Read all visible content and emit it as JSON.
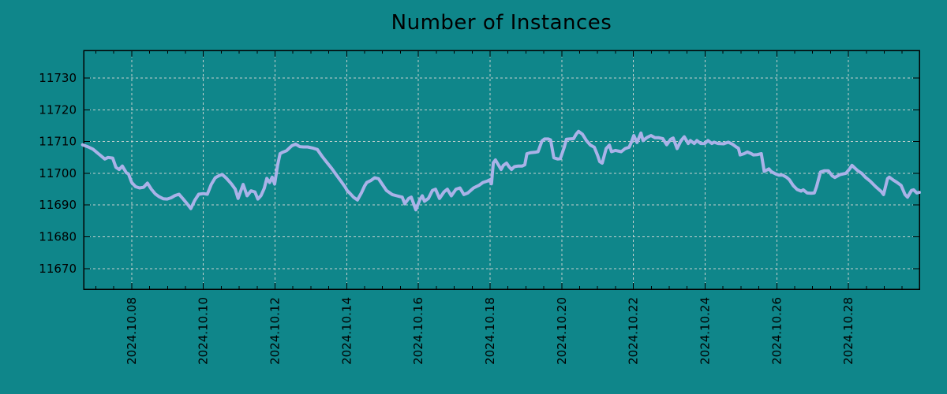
{
  "chart_data": {
    "type": "line",
    "title": "Number of Instances",
    "xlabel": "",
    "ylabel": "",
    "legend": "none",
    "grid": "dashed",
    "colors": {
      "background": "#0f868a",
      "line": "#aab2e8",
      "grid": "#c4d0ce",
      "axis": "#000000",
      "text": "#000000"
    },
    "x_axis": {
      "tick_labels": [
        "2024.10.08",
        "2024.10.10",
        "2024.10.12",
        "2024.10.14",
        "2024.10.16",
        "2024.10.18",
        "2024.10.20",
        "2024.10.22",
        "2024.10.24",
        "2024.10.26",
        "2024.10.28"
      ],
      "tick_days": [
        8,
        10,
        12,
        14,
        16,
        18,
        20,
        22,
        24,
        26,
        28
      ],
      "minor_tick_interval_days": 0.5,
      "labels_rotated_degrees": 90
    },
    "y_axis": {
      "ticks": [
        11670,
        11680,
        11690,
        11700,
        11710,
        11720,
        11730
      ]
    },
    "xlim_days": [
      6.66,
      29.98
    ],
    "ylim": [
      11663.5,
      11738.7
    ],
    "series": [
      {
        "name": "instances",
        "points": [
          [
            6.63,
            11709.0
          ],
          [
            6.79,
            11708.3
          ],
          [
            6.92,
            11707.6
          ],
          [
            7.07,
            11706.2
          ],
          [
            7.25,
            11704.5
          ],
          [
            7.34,
            11705.0
          ],
          [
            7.47,
            11704.8
          ],
          [
            7.56,
            11701.9
          ],
          [
            7.65,
            11701.2
          ],
          [
            7.74,
            11702.3
          ],
          [
            7.85,
            11700.2
          ],
          [
            7.91,
            11699.8
          ],
          [
            8.0,
            11697.1
          ],
          [
            8.11,
            11695.8
          ],
          [
            8.22,
            11695.4
          ],
          [
            8.33,
            11695.6
          ],
          [
            8.44,
            11696.9
          ],
          [
            8.55,
            11695.0
          ],
          [
            8.66,
            11693.5
          ],
          [
            8.77,
            11692.6
          ],
          [
            8.88,
            11692.0
          ],
          [
            8.99,
            11691.9
          ],
          [
            9.1,
            11692.3
          ],
          [
            9.21,
            11693.0
          ],
          [
            9.32,
            11693.4
          ],
          [
            9.43,
            11692.0
          ],
          [
            9.54,
            11690.5
          ],
          [
            9.65,
            11688.9
          ],
          [
            9.76,
            11691.5
          ],
          [
            9.87,
            11693.4
          ],
          [
            10.0,
            11693.6
          ],
          [
            10.11,
            11693.4
          ],
          [
            10.22,
            11696.5
          ],
          [
            10.33,
            11698.6
          ],
          [
            10.44,
            11699.3
          ],
          [
            10.53,
            11699.6
          ],
          [
            10.64,
            11698.5
          ],
          [
            10.78,
            11696.7
          ],
          [
            10.89,
            11695.0
          ],
          [
            10.97,
            11692.1
          ],
          [
            11.11,
            11696.5
          ],
          [
            11.22,
            11692.9
          ],
          [
            11.33,
            11694.5
          ],
          [
            11.44,
            11694.1
          ],
          [
            11.52,
            11691.9
          ],
          [
            11.61,
            11693.0
          ],
          [
            11.7,
            11695.3
          ],
          [
            11.77,
            11698.4
          ],
          [
            11.85,
            11697.1
          ],
          [
            11.92,
            11698.8
          ],
          [
            11.99,
            11696.6
          ],
          [
            12.07,
            11702.5
          ],
          [
            12.14,
            11706.2
          ],
          [
            12.21,
            11706.6
          ],
          [
            12.32,
            11707.1
          ],
          [
            12.47,
            11708.7
          ],
          [
            12.58,
            11709.2
          ],
          [
            12.69,
            11708.4
          ],
          [
            12.8,
            11708.3
          ],
          [
            12.91,
            11708.3
          ],
          [
            13.07,
            11707.9
          ],
          [
            13.18,
            11707.5
          ],
          [
            13.31,
            11705.4
          ],
          [
            13.42,
            11703.8
          ],
          [
            13.57,
            11701.7
          ],
          [
            13.73,
            11699.2
          ],
          [
            13.84,
            11697.5
          ],
          [
            13.95,
            11695.8
          ],
          [
            14.01,
            11694.6
          ],
          [
            14.08,
            11693.8
          ],
          [
            14.19,
            11692.5
          ],
          [
            14.3,
            11691.6
          ],
          [
            14.41,
            11693.8
          ],
          [
            14.5,
            11696.0
          ],
          [
            14.56,
            11697.1
          ],
          [
            14.67,
            11697.7
          ],
          [
            14.78,
            11698.6
          ],
          [
            14.89,
            11698.3
          ],
          [
            14.96,
            11697.1
          ],
          [
            15.11,
            11694.6
          ],
          [
            15.27,
            11693.3
          ],
          [
            15.4,
            11692.9
          ],
          [
            15.55,
            11692.5
          ],
          [
            15.62,
            11690.4
          ],
          [
            15.73,
            11692.1
          ],
          [
            15.8,
            11692.5
          ],
          [
            15.93,
            11688.5
          ],
          [
            16.04,
            11691.7
          ],
          [
            16.11,
            11692.9
          ],
          [
            16.17,
            11691.2
          ],
          [
            16.28,
            11692.1
          ],
          [
            16.39,
            11694.6
          ],
          [
            16.48,
            11695.0
          ],
          [
            16.59,
            11692.1
          ],
          [
            16.72,
            11694.2
          ],
          [
            16.81,
            11695.0
          ],
          [
            16.92,
            11692.9
          ],
          [
            17.05,
            11695.0
          ],
          [
            17.16,
            11695.4
          ],
          [
            17.27,
            11693.3
          ],
          [
            17.38,
            11693.8
          ],
          [
            17.54,
            11695.4
          ],
          [
            17.69,
            11696.2
          ],
          [
            17.8,
            11697.1
          ],
          [
            17.91,
            11697.5
          ],
          [
            17.98,
            11697.9
          ],
          [
            18.04,
            11696.7
          ],
          [
            18.09,
            11703.3
          ],
          [
            18.15,
            11704.2
          ],
          [
            18.24,
            11702.5
          ],
          [
            18.31,
            11701.2
          ],
          [
            18.37,
            11702.5
          ],
          [
            18.46,
            11703.2
          ],
          [
            18.53,
            11702.1
          ],
          [
            18.6,
            11701.2
          ],
          [
            18.68,
            11702.1
          ],
          [
            18.79,
            11702.3
          ],
          [
            18.9,
            11702.3
          ],
          [
            18.97,
            11702.7
          ],
          [
            19.03,
            11706.2
          ],
          [
            19.14,
            11706.5
          ],
          [
            19.25,
            11706.6
          ],
          [
            19.34,
            11706.8
          ],
          [
            19.45,
            11710.2
          ],
          [
            19.52,
            11710.8
          ],
          [
            19.63,
            11710.8
          ],
          [
            19.69,
            11710.5
          ],
          [
            19.78,
            11704.9
          ],
          [
            19.89,
            11704.5
          ],
          [
            19.96,
            11704.6
          ],
          [
            20.07,
            11708.2
          ],
          [
            20.13,
            11710.7
          ],
          [
            20.22,
            11710.8
          ],
          [
            20.33,
            11710.9
          ],
          [
            20.4,
            11712.3
          ],
          [
            20.47,
            11713.2
          ],
          [
            20.58,
            11712.3
          ],
          [
            20.69,
            11710.3
          ],
          [
            20.8,
            11708.9
          ],
          [
            20.91,
            11708.2
          ],
          [
            21.0,
            11705.7
          ],
          [
            21.06,
            11703.7
          ],
          [
            21.13,
            11703.2
          ],
          [
            21.24,
            11707.8
          ],
          [
            21.33,
            11708.9
          ],
          [
            21.39,
            11706.8
          ],
          [
            21.5,
            11707.2
          ],
          [
            21.66,
            11706.8
          ],
          [
            21.77,
            11707.8
          ],
          [
            21.88,
            11708.2
          ],
          [
            21.94,
            11709.7
          ],
          [
            22.01,
            11711.9
          ],
          [
            22.1,
            11709.7
          ],
          [
            22.21,
            11712.7
          ],
          [
            22.27,
            11710.3
          ],
          [
            22.38,
            11711.3
          ],
          [
            22.49,
            11711.9
          ],
          [
            22.6,
            11711.2
          ],
          [
            22.71,
            11711.2
          ],
          [
            22.82,
            11710.9
          ],
          [
            22.93,
            11709.0
          ],
          [
            23.04,
            11710.7
          ],
          [
            23.11,
            11711.1
          ],
          [
            23.22,
            11707.8
          ],
          [
            23.33,
            11710.3
          ],
          [
            23.42,
            11711.5
          ],
          [
            23.53,
            11709.4
          ],
          [
            23.59,
            11710.3
          ],
          [
            23.7,
            11709.4
          ],
          [
            23.77,
            11710.3
          ],
          [
            23.88,
            11709.4
          ],
          [
            23.99,
            11709.4
          ],
          [
            24.08,
            11710.3
          ],
          [
            24.19,
            11709.4
          ],
          [
            24.25,
            11709.8
          ],
          [
            24.36,
            11709.4
          ],
          [
            24.52,
            11709.3
          ],
          [
            24.59,
            11709.6
          ],
          [
            24.65,
            11709.8
          ],
          [
            24.76,
            11709.2
          ],
          [
            24.87,
            11708.3
          ],
          [
            24.93,
            11707.9
          ],
          [
            24.98,
            11705.8
          ],
          [
            25.09,
            11706.2
          ],
          [
            25.18,
            11706.7
          ],
          [
            25.29,
            11706.2
          ],
          [
            25.35,
            11705.8
          ],
          [
            25.46,
            11705.9
          ],
          [
            25.57,
            11706.2
          ],
          [
            25.65,
            11700.6
          ],
          [
            25.72,
            11701.0
          ],
          [
            25.78,
            11701.4
          ],
          [
            25.84,
            11700.6
          ],
          [
            25.9,
            11700.2
          ],
          [
            25.97,
            11699.8
          ],
          [
            26.06,
            11699.4
          ],
          [
            26.17,
            11699.4
          ],
          [
            26.28,
            11698.7
          ],
          [
            26.35,
            11698.0
          ],
          [
            26.46,
            11696.1
          ],
          [
            26.57,
            11694.9
          ],
          [
            26.68,
            11694.4
          ],
          [
            26.74,
            11694.8
          ],
          [
            26.85,
            11693.8
          ],
          [
            26.96,
            11693.7
          ],
          [
            27.05,
            11693.8
          ],
          [
            27.11,
            11695.8
          ],
          [
            27.22,
            11700.4
          ],
          [
            27.33,
            11700.8
          ],
          [
            27.44,
            11700.8
          ],
          [
            27.55,
            11699.2
          ],
          [
            27.62,
            11698.7
          ],
          [
            27.77,
            11699.6
          ],
          [
            27.93,
            11700.0
          ],
          [
            28.02,
            11701.2
          ],
          [
            28.1,
            11702.5
          ],
          [
            28.26,
            11700.8
          ],
          [
            28.37,
            11700.0
          ],
          [
            28.48,
            11698.7
          ],
          [
            28.61,
            11697.5
          ],
          [
            28.76,
            11695.8
          ],
          [
            28.92,
            11694.2
          ],
          [
            28.98,
            11693.3
          ],
          [
            29.09,
            11698.3
          ],
          [
            29.14,
            11698.8
          ],
          [
            29.25,
            11697.9
          ],
          [
            29.36,
            11697.1
          ],
          [
            29.47,
            11696.2
          ],
          [
            29.58,
            11693.3
          ],
          [
            29.65,
            11692.5
          ],
          [
            29.76,
            11694.6
          ],
          [
            29.82,
            11694.8
          ],
          [
            29.91,
            11693.8
          ],
          [
            29.98,
            11694.0
          ]
        ]
      }
    ]
  }
}
